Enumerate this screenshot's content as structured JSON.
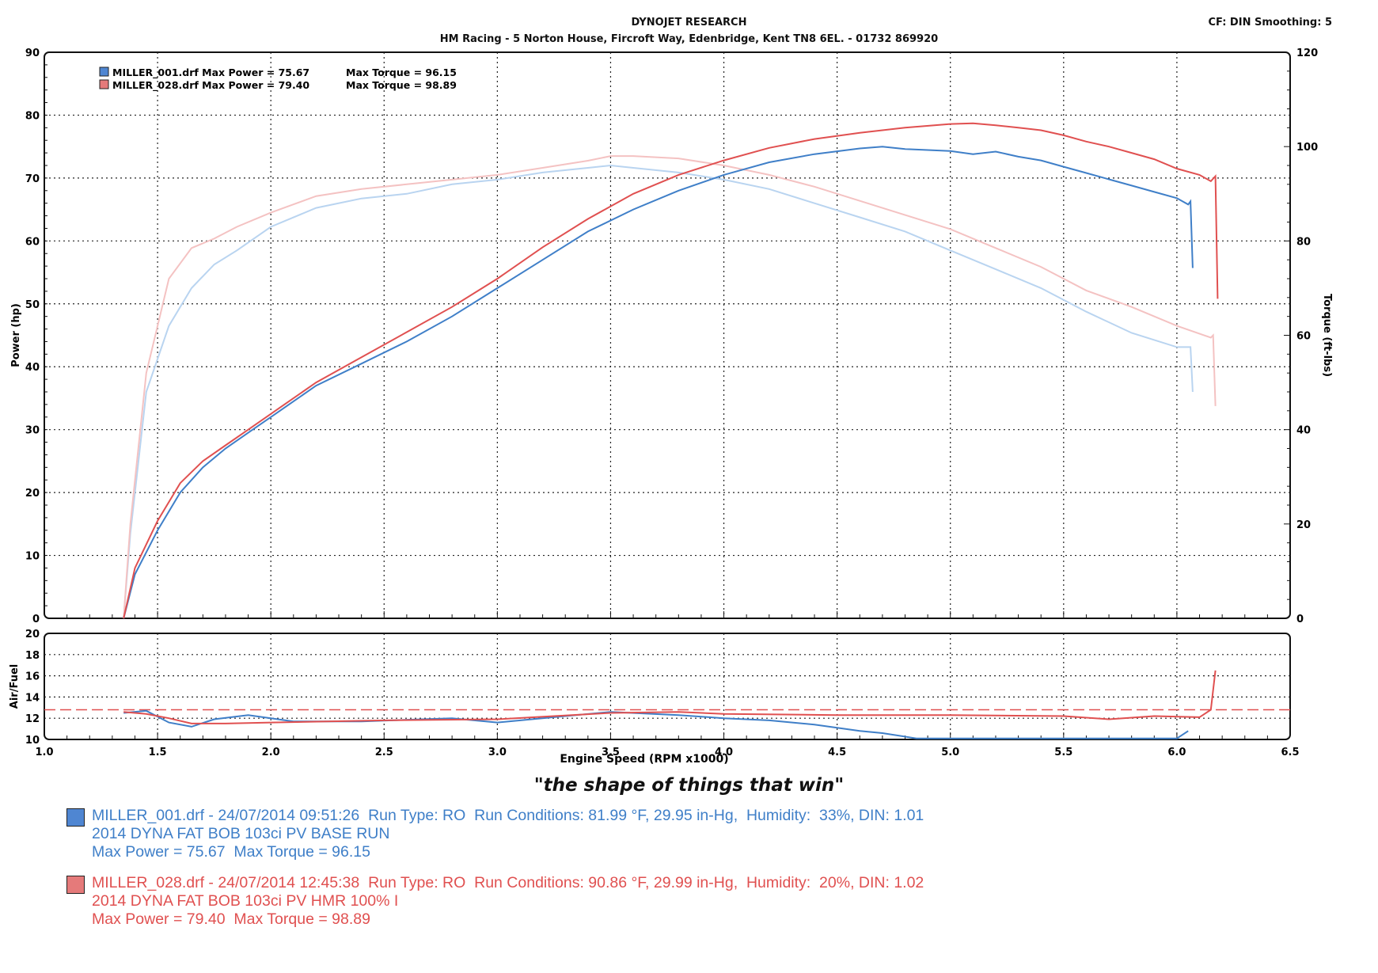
{
  "header": {
    "title": "DYNOJET RESEARCH",
    "address": "HM Racing - 5 Norton House, Fircroft Way, Edenbridge, Kent TN8 6EL. - 01732 869920",
    "settings": "CF: DIN  Smoothing: 5"
  },
  "colors": {
    "run1": "#3f7fc8",
    "run2": "#e05050",
    "run1_light": "#b9d4f0",
    "run2_light": "#f4c2c2",
    "swatch1": "#4f86d2",
    "swatch2": "#e57a7a"
  },
  "slogan": "\"the shape of things that win\"",
  "runs": [
    {
      "line1": "MILLER_001.drf - 24/07/2014 09:51:26  Run Type: RO  Run Conditions: 81.99 °F, 29.95 in-Hg,  Humidity:  33%, DIN: 1.01",
      "line2": "2014 DYNA FAT BOB 103ci PV BASE RUN",
      "line3": "Max Power = 75.67  Max Torque = 96.15"
    },
    {
      "line1": "MILLER_028.drf - 24/07/2014 12:45:38  Run Type: RO  Run Conditions: 90.86 °F, 29.99 in-Hg,  Humidity:  20%, DIN: 1.02",
      "line2": "2014 DYNA FAT BOB 103ci PV HMR 100% I",
      "line3": "Max Power = 79.40  Max Torque = 98.89"
    }
  ],
  "chart_data": [
    {
      "type": "line",
      "title": "",
      "ylabel": "Power (hp)",
      "y2label": "Torque (ft-lbs)",
      "ylim": [
        0,
        90
      ],
      "y2lim": [
        0,
        120
      ],
      "yticks": [
        "0",
        "10",
        "20",
        "30",
        "40",
        "50",
        "60",
        "70",
        "80",
        "90"
      ],
      "y2ticks": [
        "0",
        "20",
        "40",
        "60",
        "80",
        "100",
        "120"
      ],
      "xlim": [
        1.0,
        6.5
      ],
      "grid": true,
      "legend": [
        {
          "name": "MILLER_001.drf Max Power = 75.67",
          "torque": "Max Torque = 96.15"
        },
        {
          "name": "MILLER_028.drf Max Power = 79.40",
          "torque": "Max Torque = 98.89"
        }
      ],
      "series": [
        {
          "name": "MILLER_001.drf",
          "measure": "power",
          "axis": "left",
          "x": [
            1.35,
            1.4,
            1.5,
            1.6,
            1.7,
            1.8,
            1.9,
            2.0,
            2.2,
            2.4,
            2.6,
            2.8,
            3.0,
            3.2,
            3.4,
            3.6,
            3.8,
            4.0,
            4.2,
            4.4,
            4.6,
            4.7,
            4.8,
            5.0,
            5.1,
            5.2,
            5.3,
            5.4,
            5.5,
            5.6,
            5.7,
            5.8,
            5.9,
            6.0,
            6.05,
            6.06,
            6.07
          ],
          "y": [
            0,
            7,
            14,
            20,
            24,
            27,
            29.5,
            32,
            37,
            40.5,
            44,
            48,
            52.5,
            57,
            61.5,
            65,
            68,
            70.5,
            72.5,
            73.8,
            74.7,
            75.0,
            74.6,
            74.3,
            73.8,
            74.2,
            73.4,
            72.8,
            71.8,
            70.8,
            69.8,
            68.8,
            67.8,
            66.8,
            65.8,
            66.3,
            55.7
          ]
        },
        {
          "name": "MILLER_028.drf",
          "measure": "power",
          "axis": "left",
          "x": [
            1.35,
            1.4,
            1.5,
            1.6,
            1.7,
            1.8,
            1.9,
            2.0,
            2.2,
            2.4,
            2.6,
            2.8,
            3.0,
            3.2,
            3.4,
            3.6,
            3.8,
            4.0,
            4.2,
            4.4,
            4.6,
            4.8,
            5.0,
            5.1,
            5.2,
            5.3,
            5.4,
            5.5,
            5.6,
            5.7,
            5.8,
            5.9,
            6.0,
            6.1,
            6.15,
            6.17,
            6.18
          ],
          "y": [
            0,
            8,
            15.5,
            21.5,
            25,
            27.5,
            30,
            32.5,
            37.5,
            41.5,
            45.5,
            49.5,
            54,
            59,
            63.5,
            67.5,
            70.5,
            72.8,
            74.8,
            76.2,
            77.2,
            78.0,
            78.6,
            78.7,
            78.4,
            78.0,
            77.6,
            76.8,
            75.8,
            75.0,
            74.0,
            73.0,
            71.5,
            70.5,
            69.5,
            70.3,
            50.8
          ]
        },
        {
          "name": "MILLER_001.drf",
          "measure": "torque",
          "axis": "right",
          "x": [
            1.35,
            1.38,
            1.45,
            1.55,
            1.65,
            1.75,
            1.85,
            2.0,
            2.2,
            2.4,
            2.6,
            2.8,
            3.0,
            3.2,
            3.4,
            3.5,
            3.6,
            3.8,
            4.0,
            4.2,
            4.4,
            4.6,
            4.8,
            5.0,
            5.2,
            5.4,
            5.6,
            5.8,
            6.0,
            6.06,
            6.07
          ],
          "y": [
            0,
            18,
            48,
            62,
            70,
            75,
            78,
            83,
            87,
            89,
            90,
            92,
            93,
            94.5,
            95.5,
            96,
            95.5,
            94.5,
            93,
            91,
            88,
            85,
            82,
            78,
            74,
            70,
            65,
            60.5,
            57.5,
            57.5,
            48
          ]
        },
        {
          "name": "MILLER_028.drf",
          "measure": "torque",
          "axis": "right",
          "x": [
            1.35,
            1.38,
            1.45,
            1.55,
            1.65,
            1.75,
            1.85,
            2.0,
            2.2,
            2.4,
            2.6,
            2.8,
            3.0,
            3.2,
            3.4,
            3.5,
            3.6,
            3.8,
            4.0,
            4.2,
            4.4,
            4.6,
            4.8,
            5.0,
            5.2,
            5.4,
            5.6,
            5.8,
            6.0,
            6.15,
            6.16,
            6.17
          ],
          "y": [
            0,
            20,
            52,
            72,
            78.5,
            80.5,
            83,
            86,
            89.5,
            91,
            92,
            93,
            94,
            95.5,
            97,
            98,
            98,
            97.5,
            96,
            94,
            91.5,
            88.5,
            85.5,
            82.5,
            78.5,
            74.5,
            69.5,
            66,
            62,
            59.5,
            60,
            45
          ]
        }
      ]
    },
    {
      "type": "line",
      "title": "",
      "xlabel": "Engine Speed (RPM x1000)",
      "ylabel": "Air/Fuel",
      "ylim": [
        10,
        20
      ],
      "yticks": [
        "10",
        "12",
        "14",
        "16",
        "18",
        "20"
      ],
      "xlim": [
        1.0,
        6.5
      ],
      "xticks": [
        "1.0",
        "1.5",
        "2.0",
        "2.5",
        "3.0",
        "3.5",
        "4.0",
        "4.5",
        "5.0",
        "5.5",
        "6.0",
        "6.5"
      ],
      "grid": true,
      "reference_line": 12.8,
      "series": [
        {
          "name": "MILLER_001.drf",
          "x": [
            1.35,
            1.45,
            1.55,
            1.65,
            1.75,
            1.9,
            2.1,
            2.4,
            2.8,
            3.0,
            3.3,
            3.5,
            3.8,
            4.0,
            4.2,
            4.4,
            4.6,
            4.7,
            4.85,
            5.0,
            5.5,
            6.0,
            6.05
          ],
          "y": [
            12.5,
            12.7,
            11.6,
            11.2,
            11.9,
            12.3,
            11.7,
            11.7,
            12.0,
            11.6,
            12.2,
            12.6,
            12.3,
            12.0,
            11.8,
            11.4,
            10.8,
            10.6,
            10.1,
            10.1,
            10.1,
            10.1,
            10.8
          ]
        },
        {
          "name": "MILLER_028.drf",
          "x": [
            1.35,
            1.45,
            1.55,
            1.65,
            1.8,
            2.0,
            2.5,
            3.0,
            3.5,
            3.8,
            4.0,
            4.5,
            5.0,
            5.5,
            5.7,
            5.9,
            6.1,
            6.15,
            6.17
          ],
          "y": [
            12.6,
            12.4,
            12.0,
            11.5,
            11.5,
            11.6,
            11.8,
            11.9,
            12.5,
            12.6,
            12.4,
            12.3,
            12.3,
            12.2,
            11.9,
            12.2,
            12.1,
            12.8,
            16.5
          ]
        }
      ]
    }
  ]
}
